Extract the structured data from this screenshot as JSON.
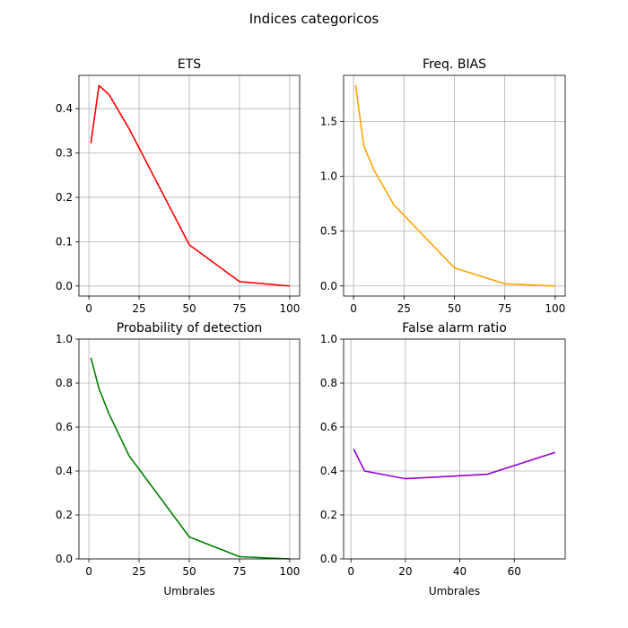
{
  "figure": {
    "title": "Indices categoricos"
  },
  "chart_data": [
    {
      "type": "line",
      "title": "ETS",
      "xlabel": "",
      "ylabel": "",
      "grid": true,
      "xlim": [
        -4.95,
        104.95
      ],
      "ylim": [
        -0.0226,
        0.475
      ],
      "xticks": [
        0,
        25,
        50,
        75,
        100
      ],
      "yticks": [
        0.0,
        0.1,
        0.2,
        0.3,
        0.4
      ],
      "xtick_labels": [
        "0",
        "25",
        "50",
        "75",
        "100"
      ],
      "ytick_labels": [
        "0.0",
        "0.1",
        "0.2",
        "0.3",
        "0.4"
      ],
      "series": [
        {
          "color": "#ff0000",
          "x": [
            1,
            5,
            10,
            20,
            50,
            75,
            100
          ],
          "y": [
            0.322,
            0.452,
            0.432,
            0.355,
            0.093,
            0.01,
            0.0
          ]
        }
      ]
    },
    {
      "type": "line",
      "title": "Freq. BIAS",
      "xlabel": "",
      "ylabel": "",
      "grid": true,
      "xlim": [
        -4.95,
        104.95
      ],
      "ylim": [
        -0.092,
        1.92
      ],
      "xticks": [
        0,
        25,
        50,
        75,
        100
      ],
      "yticks": [
        0.0,
        0.5,
        1.0,
        1.5
      ],
      "xtick_labels": [
        "0",
        "25",
        "50",
        "75",
        "100"
      ],
      "ytick_labels": [
        "0.0",
        "0.5",
        "1.0",
        "1.5"
      ],
      "series": [
        {
          "color": "#ffa500",
          "x": [
            1,
            5,
            10,
            20,
            50,
            75,
            100
          ],
          "y": [
            1.83,
            1.28,
            1.06,
            0.74,
            0.165,
            0.02,
            0.0
          ]
        }
      ]
    },
    {
      "type": "line",
      "title": "Probability of detection",
      "xlabel": "Umbrales",
      "ylabel": "",
      "grid": true,
      "xlim": [
        -4.95,
        104.95
      ],
      "ylim": [
        0.0,
        1.0
      ],
      "xticks": [
        0,
        25,
        50,
        75,
        100
      ],
      "yticks": [
        0.0,
        0.2,
        0.4,
        0.6,
        0.8,
        1.0
      ],
      "xtick_labels": [
        "0",
        "25",
        "50",
        "75",
        "100"
      ],
      "ytick_labels": [
        "0.0",
        "0.2",
        "0.4",
        "0.6",
        "0.8",
        "1.0"
      ],
      "series": [
        {
          "color": "#008000",
          "x": [
            1,
            5,
            10,
            20,
            50,
            75,
            100
          ],
          "y": [
            0.915,
            0.775,
            0.66,
            0.47,
            0.1,
            0.01,
            0.0
          ]
        }
      ]
    },
    {
      "type": "line",
      "title": "False alarm ratio",
      "xlabel": "Umbrales",
      "ylabel": "",
      "grid": true,
      "xlim": [
        -2.7,
        78.7
      ],
      "ylim": [
        0.0,
        1.0
      ],
      "xticks": [
        0,
        20,
        40,
        60
      ],
      "yticks": [
        0.0,
        0.2,
        0.4,
        0.6,
        0.8,
        1.0
      ],
      "xtick_labels": [
        "0",
        "20",
        "40",
        "60"
      ],
      "ytick_labels": [
        "0.0",
        "0.2",
        "0.4",
        "0.6",
        "0.8",
        "1.0"
      ],
      "series": [
        {
          "color": "#9400d3",
          "x": [
            1,
            5,
            20,
            50,
            75
          ],
          "y": [
            0.5,
            0.4,
            0.365,
            0.385,
            0.485
          ]
        }
      ]
    }
  ]
}
